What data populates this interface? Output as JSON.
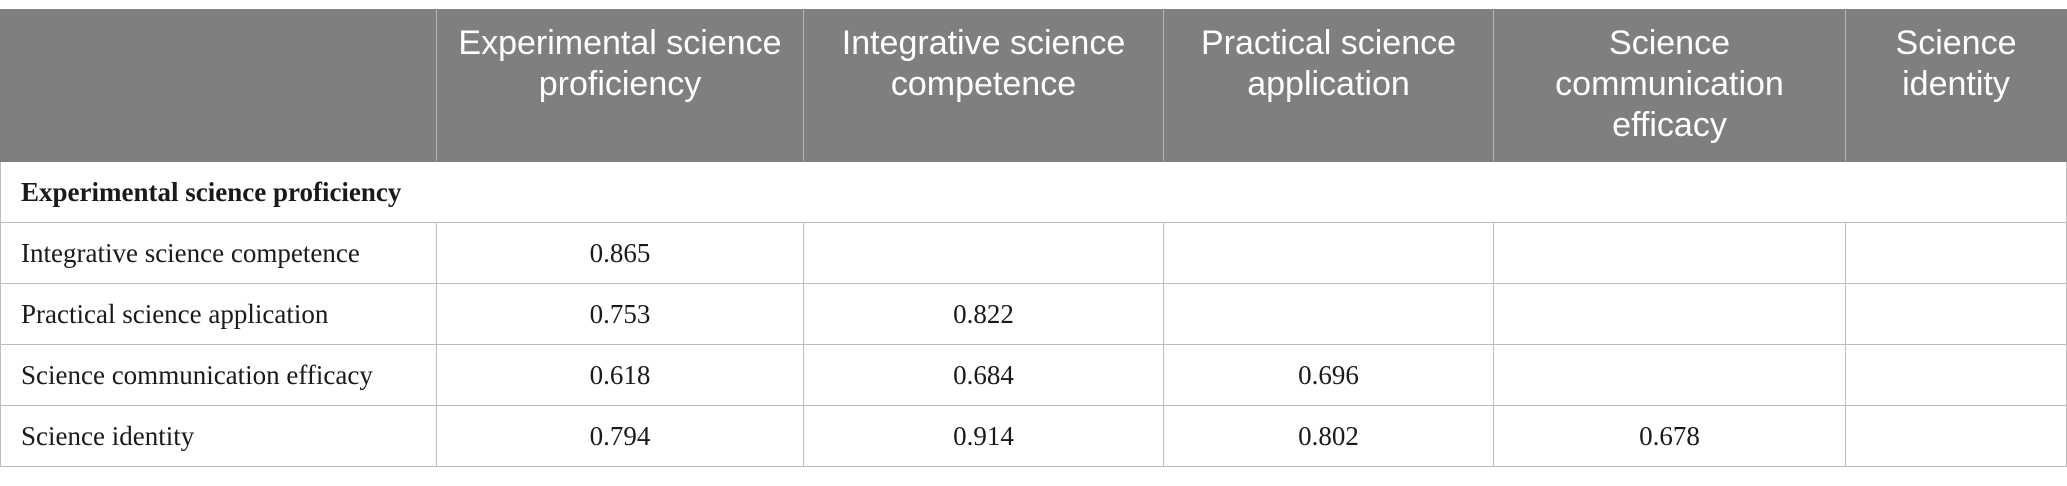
{
  "table": {
    "headers": [
      "",
      "Experimental science proficiency",
      "Integrative science competence",
      "Practical science application",
      "Science communication efficacy",
      "Science identity"
    ],
    "section_row": "Experimental science proficiency",
    "rows": [
      {
        "label": "Integrative science competence",
        "values": [
          "0.865",
          "",
          "",
          "",
          ""
        ]
      },
      {
        "label": "Practical science application",
        "values": [
          "0.753",
          "0.822",
          "",
          "",
          ""
        ]
      },
      {
        "label": "Science communication efficacy",
        "values": [
          "0.618",
          "0.684",
          "0.696",
          "",
          ""
        ]
      },
      {
        "label": "Science identity",
        "values": [
          "0.794",
          "0.914",
          "0.802",
          "0.678",
          ""
        ]
      }
    ]
  }
}
